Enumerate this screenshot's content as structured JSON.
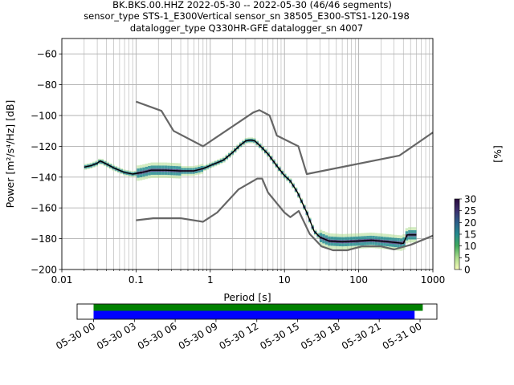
{
  "chart_data": {
    "type": "line",
    "title_lines": [
      "BK.BKS.00.HHZ   2022-05-30 -- 2022-05-30  (46/46 segments)",
      "sensor_type STS-1_E300Vertical sensor_sn 38505_E300-STS1-120-198",
      "datalogger_type Q330HR-GFE datalogger_sn 4007"
    ],
    "xlabel": "Period [s]",
    "ylabel": "Power [m²/s⁴/Hz] [dB]",
    "xscale": "log",
    "xlim": [
      0.01,
      1000
    ],
    "ylim": [
      -200,
      -50
    ],
    "grid": true,
    "x_ticks": [
      {
        "value": 0.01,
        "label": "0.01"
      },
      {
        "value": 0.1,
        "label": "0.1"
      },
      {
        "value": 1,
        "label": "1"
      },
      {
        "value": 10,
        "label": "10"
      },
      {
        "value": 100,
        "label": "100"
      },
      {
        "value": 1000,
        "label": "1000"
      }
    ],
    "y_ticks": [
      {
        "value": -60,
        "label": "−60"
      },
      {
        "value": -80,
        "label": "−80"
      },
      {
        "value": -100,
        "label": "−100"
      },
      {
        "value": -120,
        "label": "−120"
      },
      {
        "value": -140,
        "label": "−140"
      },
      {
        "value": -160,
        "label": "−160"
      },
      {
        "value": -180,
        "label": "−180"
      },
      {
        "value": -200,
        "label": "−200"
      }
    ],
    "series": [
      {
        "kind": "noise_model_high",
        "color": "#666666",
        "points": [
          [
            0.1,
            -91
          ],
          [
            0.22,
            -97
          ],
          [
            0.32,
            -110
          ],
          [
            0.8,
            -120
          ],
          [
            3.8,
            -98
          ],
          [
            4.6,
            -96.5
          ],
          [
            6.3,
            -100
          ],
          [
            7.9,
            -113
          ],
          [
            15.4,
            -120
          ],
          [
            20,
            -138
          ],
          [
            354.8,
            -126
          ],
          [
            1000,
            -111
          ]
        ]
      },
      {
        "kind": "noise_model_low",
        "color": "#666666",
        "points": [
          [
            0.1,
            -168
          ],
          [
            0.17,
            -166.7
          ],
          [
            0.4,
            -166.7
          ],
          [
            0.8,
            -169
          ],
          [
            1.24,
            -163
          ],
          [
            2.4,
            -148
          ],
          [
            4.3,
            -141
          ],
          [
            5,
            -141
          ],
          [
            6,
            -150
          ],
          [
            10,
            -163
          ],
          [
            12,
            -166
          ],
          [
            15.6,
            -162
          ],
          [
            21.9,
            -177
          ],
          [
            31.6,
            -185
          ],
          [
            45,
            -187.5
          ],
          [
            70,
            -187.5
          ],
          [
            110,
            -185
          ],
          [
            200,
            -185
          ],
          [
            300,
            -187
          ],
          [
            500,
            -184
          ],
          [
            1000,
            -178
          ]
        ]
      },
      {
        "kind": "mean_psd",
        "color": "#000000",
        "points": [
          [
            0.02,
            -133.5
          ],
          [
            0.025,
            -132.5
          ],
          [
            0.03,
            -131
          ],
          [
            0.033,
            -129.5
          ],
          [
            0.04,
            -131.5
          ],
          [
            0.05,
            -134
          ],
          [
            0.07,
            -137
          ],
          [
            0.09,
            -138
          ],
          [
            0.12,
            -137
          ],
          [
            0.16,
            -135.5
          ],
          [
            0.25,
            -135.5
          ],
          [
            0.4,
            -136
          ],
          [
            0.6,
            -136
          ],
          [
            0.8,
            -134.5
          ],
          [
            1,
            -132.5
          ],
          [
            1.5,
            -129
          ],
          [
            2,
            -124
          ],
          [
            2.5,
            -119.5
          ],
          [
            3,
            -116.5
          ],
          [
            3.5,
            -116
          ],
          [
            4,
            -116.5
          ],
          [
            5,
            -121
          ],
          [
            6,
            -125
          ],
          [
            8,
            -133
          ],
          [
            10,
            -139
          ],
          [
            12,
            -142.5
          ],
          [
            15,
            -150
          ],
          [
            20,
            -163
          ],
          [
            25,
            -175
          ],
          [
            30,
            -179
          ],
          [
            40,
            -181.5
          ],
          [
            60,
            -182
          ],
          [
            100,
            -181.5
          ],
          [
            150,
            -181
          ],
          [
            250,
            -182
          ],
          [
            400,
            -183
          ],
          [
            450,
            -177.5
          ],
          [
            600,
            -177.5
          ]
        ]
      }
    ],
    "density_colorbar": {
      "label": "[%]",
      "min": 0,
      "max": 30,
      "ticks": [
        {
          "value": 0,
          "label": "0"
        },
        {
          "value": 5,
          "label": "5"
        },
        {
          "value": 10,
          "label": "10"
        },
        {
          "value": 15,
          "label": "15"
        },
        {
          "value": 20,
          "label": "20"
        },
        {
          "value": 25,
          "label": "25"
        },
        {
          "value": 30,
          "label": "30"
        }
      ],
      "colors": [
        "#f7fcb9",
        "#addd8e",
        "#41ab5d",
        "#238b8e",
        "#2c5f8a",
        "#3b2f6e",
        "#2b0b3f"
      ]
    },
    "coverage_timeline": {
      "tick_labels": [
        "05-30 00",
        "05-30 03",
        "05-30 06",
        "05-30 09",
        "05-30 12",
        "05-30 15",
        "05-30 18",
        "05-30 21",
        "05-31 00"
      ],
      "bars": [
        {
          "kind": "data_available",
          "color": "#008000",
          "start_hour": 0,
          "end_hour": 24.2
        },
        {
          "kind": "psd_segments",
          "color": "#0000ff",
          "start_hour": 0,
          "end_hour": 23.6
        }
      ]
    }
  }
}
